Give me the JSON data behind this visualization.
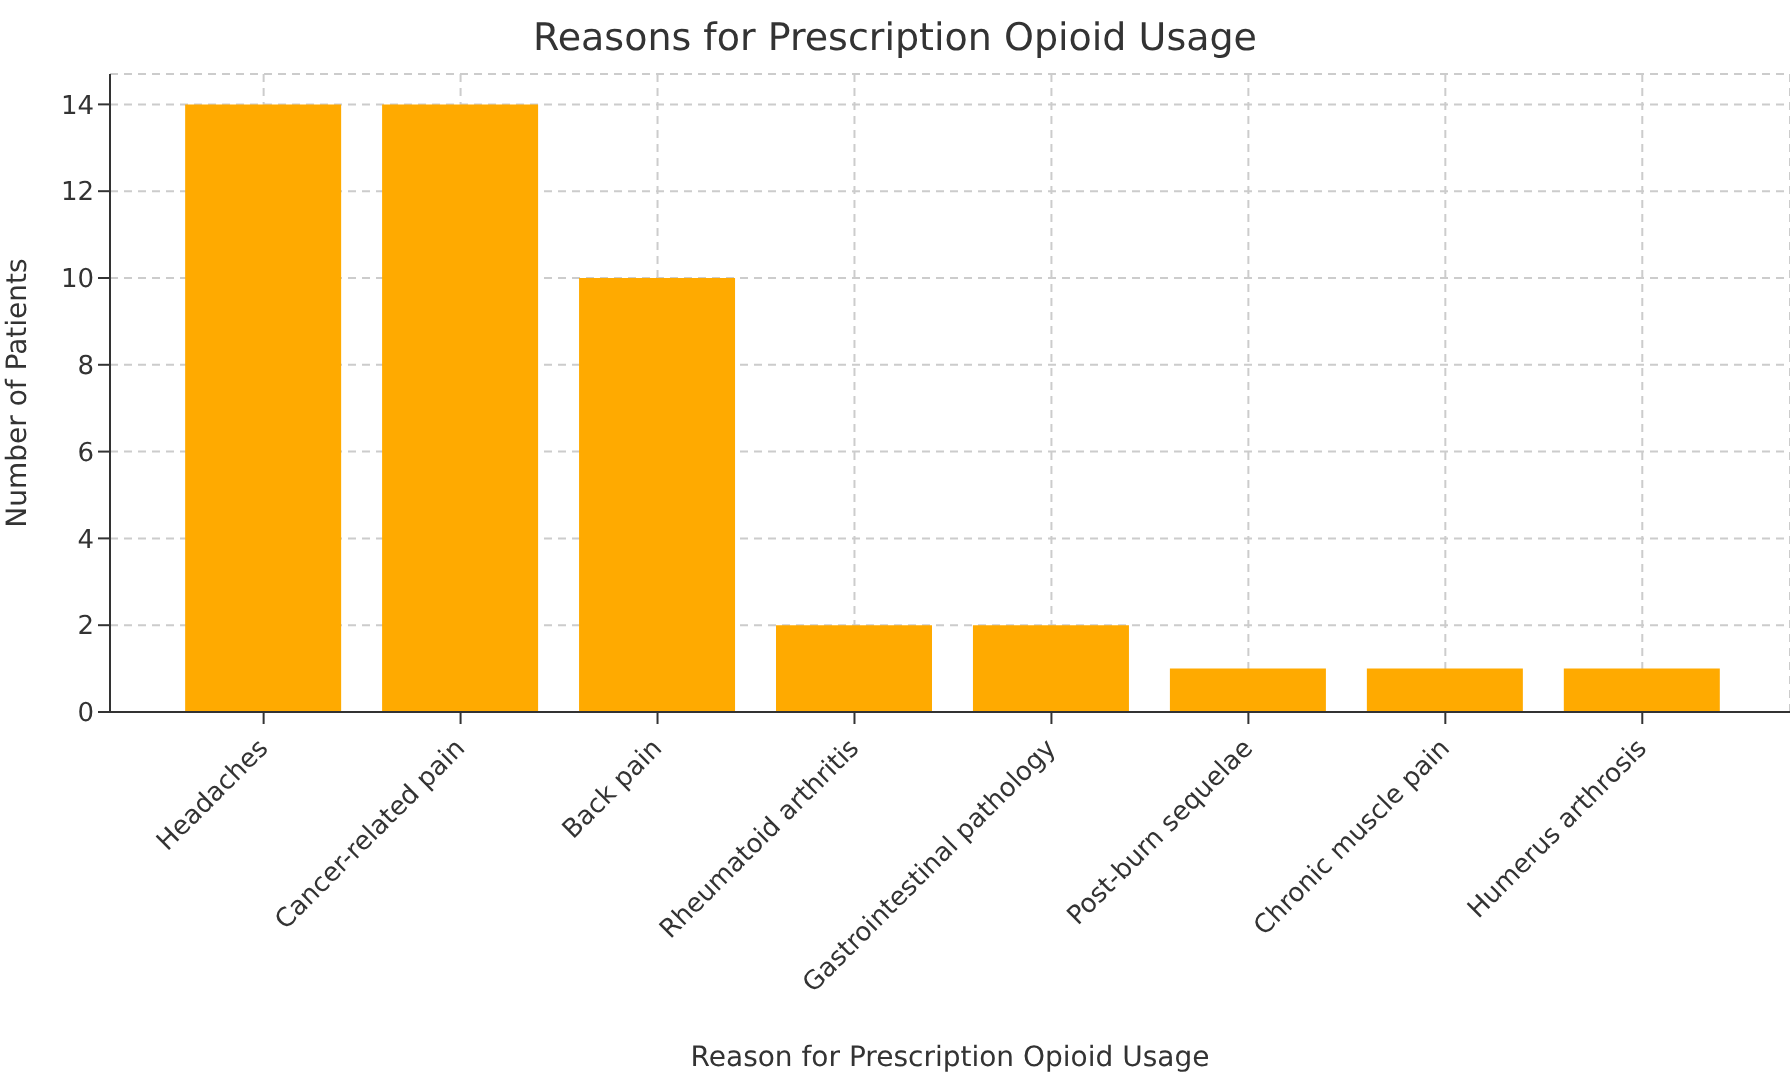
{
  "chart_data": {
    "type": "bar",
    "title": "Reasons for Prescription Opioid Usage",
    "xlabel": "Reason for Prescription Opioid Usage",
    "ylabel": "Number of Patients",
    "categories": [
      "Headaches",
      "Cancer-related pain",
      "Back pain",
      "Rheumatoid arthritis",
      "Gastrointestinal pathology",
      "Post-burn sequelae",
      "Chronic muscle pain",
      "Humerus arthrosis"
    ],
    "values": [
      14,
      14,
      10,
      2,
      2,
      1,
      1,
      1
    ],
    "color": "#ffaa00",
    "ylim": [
      0,
      14.7
    ],
    "yticks": [
      0,
      2,
      4,
      6,
      8,
      10,
      12,
      14
    ],
    "grid": true
  }
}
